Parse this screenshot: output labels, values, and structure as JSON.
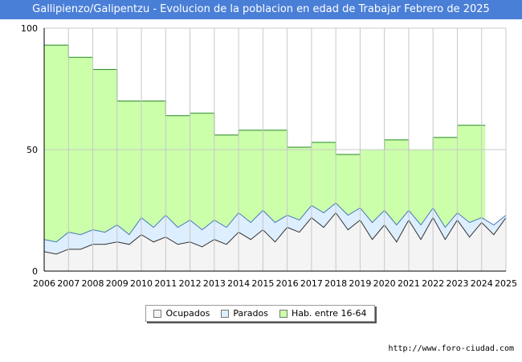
{
  "chart_data": {
    "type": "area",
    "title": "Gallipienzo/Galipentzu - Evolucion de la poblacion en edad de Trabajar Febrero de 2025",
    "xlabel": "",
    "ylabel": "",
    "xlim": [
      2006,
      2025
    ],
    "ylim": [
      0,
      100
    ],
    "x_ticks": [
      "2006",
      "2007",
      "2008",
      "2009",
      "2010",
      "2011",
      "2012",
      "2013",
      "2014",
      "2015",
      "2016",
      "2017",
      "2018",
      "2019",
      "2020",
      "2021",
      "2022",
      "2023",
      "2024",
      "2025"
    ],
    "y_ticks": [
      0,
      50,
      100
    ],
    "grid": true,
    "legend_position": "bottom-center",
    "series": [
      {
        "name": "Hab. entre 16-64",
        "color": "#ccffaa",
        "line_color": "#228822",
        "x": [
          2006,
          2007,
          2008,
          2009,
          2010,
          2011,
          2012,
          2013,
          2014,
          2015,
          2016,
          2017,
          2018,
          2019,
          2020,
          2021,
          2022,
          2023,
          2024
        ],
        "values": [
          93,
          88,
          83,
          70,
          70,
          64,
          65,
          56,
          58,
          58,
          51,
          53,
          48,
          50,
          54,
          50,
          55,
          60,
          60
        ]
      },
      {
        "name": "Parados",
        "color": "#ddeeff",
        "line_color": "#4477bb",
        "x": [
          2006,
          2006.5,
          2007,
          2007.5,
          2008,
          2008.5,
          2009,
          2009.5,
          2010,
          2010.5,
          2011,
          2011.5,
          2012,
          2012.5,
          2013,
          2013.5,
          2014,
          2014.5,
          2015,
          2015.5,
          2016,
          2016.5,
          2017,
          2017.5,
          2018,
          2018.5,
          2019,
          2019.5,
          2020,
          2020.5,
          2021,
          2021.5,
          2022,
          2022.5,
          2023,
          2023.5,
          2024,
          2024.5,
          2025
        ],
        "values": [
          13,
          12,
          16,
          15,
          17,
          16,
          19,
          15,
          22,
          18,
          23,
          18,
          21,
          17,
          21,
          18,
          24,
          20,
          25,
          20,
          23,
          21,
          27,
          24,
          28,
          23,
          26,
          20,
          25,
          19,
          25,
          19,
          26,
          18,
          24,
          20,
          22,
          19,
          23
        ]
      },
      {
        "name": "Ocupados",
        "color": "#f4f4f4",
        "line_color": "#333333",
        "x": [
          2006,
          2006.5,
          2007,
          2007.5,
          2008,
          2008.5,
          2009,
          2009.5,
          2010,
          2010.5,
          2011,
          2011.5,
          2012,
          2012.5,
          2013,
          2013.5,
          2014,
          2014.5,
          2015,
          2015.5,
          2016,
          2016.5,
          2017,
          2017.5,
          2018,
          2018.5,
          2019,
          2019.5,
          2020,
          2020.5,
          2021,
          2021.5,
          2022,
          2022.5,
          2023,
          2023.5,
          2024,
          2024.5,
          2025
        ],
        "values": [
          8,
          7,
          9,
          9,
          11,
          11,
          12,
          11,
          15,
          12,
          14,
          11,
          12,
          10,
          13,
          11,
          16,
          13,
          17,
          12,
          18,
          16,
          22,
          18,
          24,
          17,
          21,
          13,
          19,
          12,
          21,
          13,
          22,
          13,
          21,
          14,
          20,
          15,
          22
        ]
      }
    ]
  },
  "legend": {
    "items": [
      "Ocupados",
      "Parados",
      "Hab. entre 16-64"
    ]
  },
  "footer": {
    "url": "http://www.foro-ciudad.com"
  }
}
